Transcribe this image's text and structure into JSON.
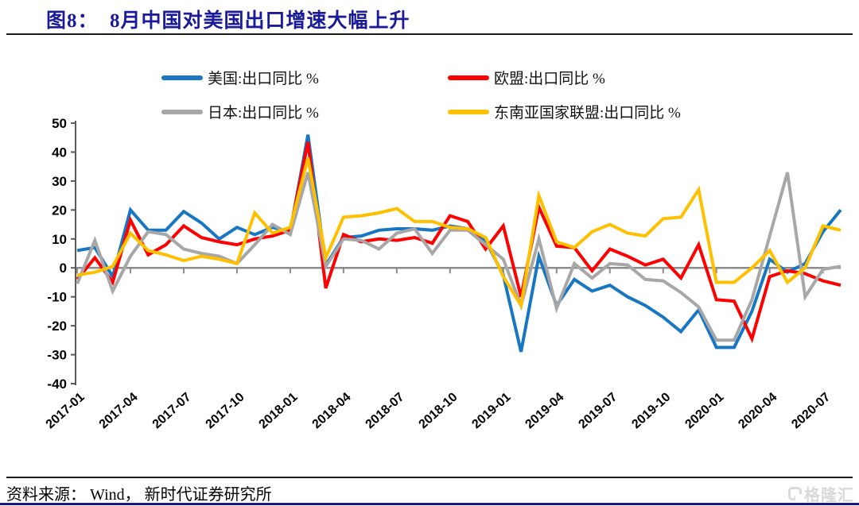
{
  "header": {
    "title": "图8：  8月中国对美国出口增速大幅上升"
  },
  "footer": {
    "source": "资料来源： Wind， 新时代证券研究所"
  },
  "watermark": {
    "text": "格隆汇",
    "icon": "gelonghui-g-logo",
    "color": "#d9d9d9"
  },
  "colors": {
    "title_navy": "#1b1b9a",
    "us_blue": "#1777c2",
    "eu_red": "#fe0000",
    "jp_gray": "#a7a7a7",
    "asean_yellow": "#ffc000",
    "zero_line": "#8c8c8c",
    "axis": "#595959"
  },
  "chart_data": {
    "type": "line",
    "title": "图8：  8月中国对美国出口增速大幅上升",
    "xlabel": "",
    "ylabel": "",
    "ylim": [
      -40,
      50
    ],
    "grid": false,
    "legend_position": "top",
    "yticks": [
      50,
      40,
      30,
      20,
      10,
      0,
      -10,
      -20,
      -30,
      -40
    ],
    "xtick_labels": [
      "2017-01",
      "2017-04",
      "2017-07",
      "2017-10",
      "2018-01",
      "2018-04",
      "2018-07",
      "2018-10",
      "2019-01",
      "2019-04",
      "2019-07",
      "2019-10",
      "2020-01",
      "2020-04",
      "2020-07"
    ],
    "x": [
      "2017-01",
      "2017-02",
      "2017-03",
      "2017-04",
      "2017-05",
      "2017-06",
      "2017-07",
      "2017-08",
      "2017-09",
      "2017-10",
      "2017-11",
      "2017-12",
      "2018-01",
      "2018-02",
      "2018-03",
      "2018-04",
      "2018-05",
      "2018-06",
      "2018-07",
      "2018-08",
      "2018-09",
      "2018-10",
      "2018-11",
      "2018-12",
      "2019-01",
      "2019-02",
      "2019-03",
      "2019-04",
      "2019-05",
      "2019-06",
      "2019-07",
      "2019-08",
      "2019-09",
      "2019-10",
      "2019-11",
      "2019-12",
      "2020-01",
      "2020-02",
      "2020-03",
      "2020-04",
      "2020-05",
      "2020-06",
      "2020-07",
      "2020-08"
    ],
    "series": [
      {
        "name": "美国:出口同比 %",
        "color": "#1777c2",
        "values": [
          6,
          7,
          -3,
          20,
          13,
          13,
          19.5,
          15.5,
          10,
          14,
          11.5,
          14,
          12.5,
          46,
          1,
          10.5,
          11,
          13,
          13.5,
          13.5,
          13,
          14.5,
          13.5,
          9.5,
          -2.5,
          -29,
          4,
          -13,
          -4,
          -8,
          -6,
          -10,
          -13,
          -17,
          -22,
          -14.5,
          -27.5,
          -27.5,
          -15,
          3,
          -1.5,
          1.5,
          12.5,
          20
        ]
      },
      {
        "name": "欧盟:出口同比 %",
        "color": "#fe0000",
        "values": [
          -4,
          3.5,
          -5,
          16.5,
          4.5,
          8,
          14.5,
          10.5,
          9,
          8,
          10,
          11,
          13,
          43.5,
          -7,
          11.5,
          9,
          10,
          9.5,
          10.5,
          8.5,
          18,
          16,
          6.5,
          14.5,
          -10,
          21,
          7.5,
          7,
          -1,
          6.5,
          4,
          1,
          3,
          -3.5,
          8,
          -11,
          -11.5,
          -24.5,
          -3,
          -1,
          -2,
          -4.5,
          -6
        ]
      },
      {
        "name": "日本:出口同比 %",
        "color": "#a7a7a7",
        "values": [
          -5.5,
          9.5,
          -8,
          4,
          12.5,
          11.5,
          6.5,
          5,
          4,
          1.5,
          8,
          15,
          11.5,
          33,
          0.5,
          10,
          9.5,
          6.5,
          12,
          13.5,
          5,
          13,
          13,
          8,
          3,
          -13,
          10,
          -14,
          1.5,
          -3.5,
          1.5,
          1,
          -4,
          -4.5,
          -8.5,
          -13.5,
          -25,
          -25,
          -11,
          11,
          33,
          -10,
          -0.5,
          0.5
        ]
      },
      {
        "name": "东南亚国家联盟:出口同比 %",
        "color": "#ffc000",
        "values": [
          -2.5,
          -1.5,
          0.5,
          12,
          6,
          4.5,
          2.5,
          4,
          3,
          1.5,
          19,
          12,
          14,
          38,
          3.5,
          17.5,
          18,
          19,
          20.5,
          16,
          16,
          14,
          13.5,
          10.5,
          -3,
          -13,
          25,
          9,
          7,
          12.5,
          15,
          12,
          11,
          17,
          17.5,
          27,
          -5,
          -5,
          0,
          6,
          -5,
          0,
          14.5,
          13
        ]
      }
    ]
  }
}
